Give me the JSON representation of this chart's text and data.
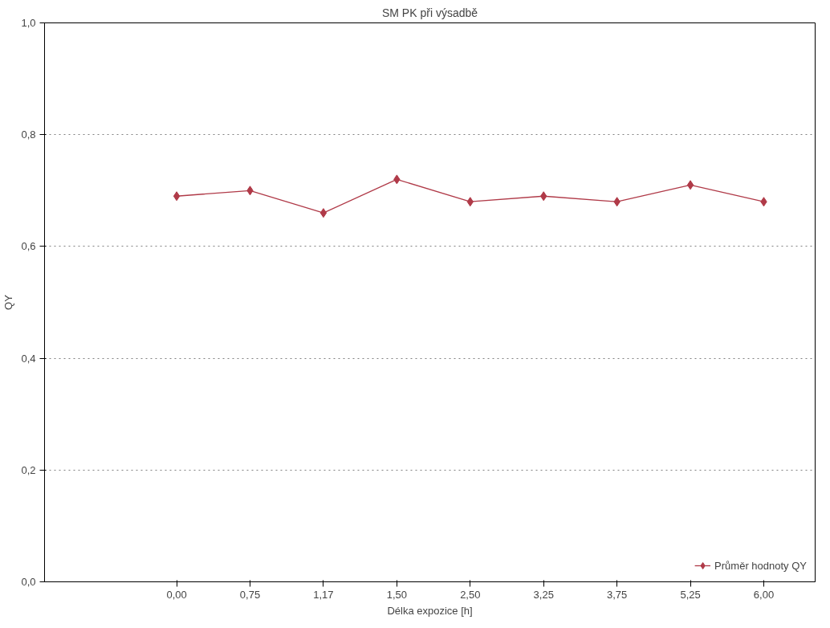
{
  "chart_data": {
    "type": "line",
    "title": "SM PK při výsadbě",
    "xlabel": "Délka expozice [h]",
    "ylabel": "QY",
    "categories": [
      "0,00",
      "0,75",
      "1,17",
      "1,50",
      "2,50",
      "3,25",
      "3,75",
      "5,25",
      "6,00"
    ],
    "series": [
      {
        "name": "Průměr hodnoty QY",
        "color": "#b03a48",
        "values": [
          0.69,
          0.7,
          0.66,
          0.72,
          0.68,
          0.69,
          0.68,
          0.71,
          0.68
        ]
      }
    ],
    "ylim": [
      0,
      1
    ],
    "yticks": [
      {
        "value": 0,
        "label": "0,0"
      },
      {
        "value": 0.2,
        "label": "0,2"
      },
      {
        "value": 0.4,
        "label": "0,4"
      },
      {
        "value": 0.6,
        "label": "0,6"
      },
      {
        "value": 0.8,
        "label": "0,8"
      },
      {
        "value": 1,
        "label": "1,0"
      }
    ],
    "grid": "y",
    "legend": "bottom right",
    "marker": "diamond",
    "line_style": "solid"
  }
}
